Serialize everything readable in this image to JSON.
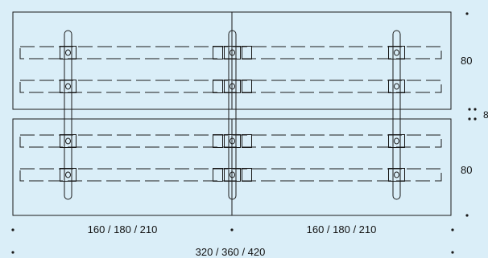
{
  "dimensions": {
    "top_height": "80",
    "gap": "8",
    "bottom_height": "80",
    "left_width": "160 / 180 / 210",
    "right_width": "160 / 180 / 210",
    "total_width": "320 / 360 / 420"
  },
  "colors": {
    "background": "#daeef8",
    "line": "#1a1a1a"
  }
}
